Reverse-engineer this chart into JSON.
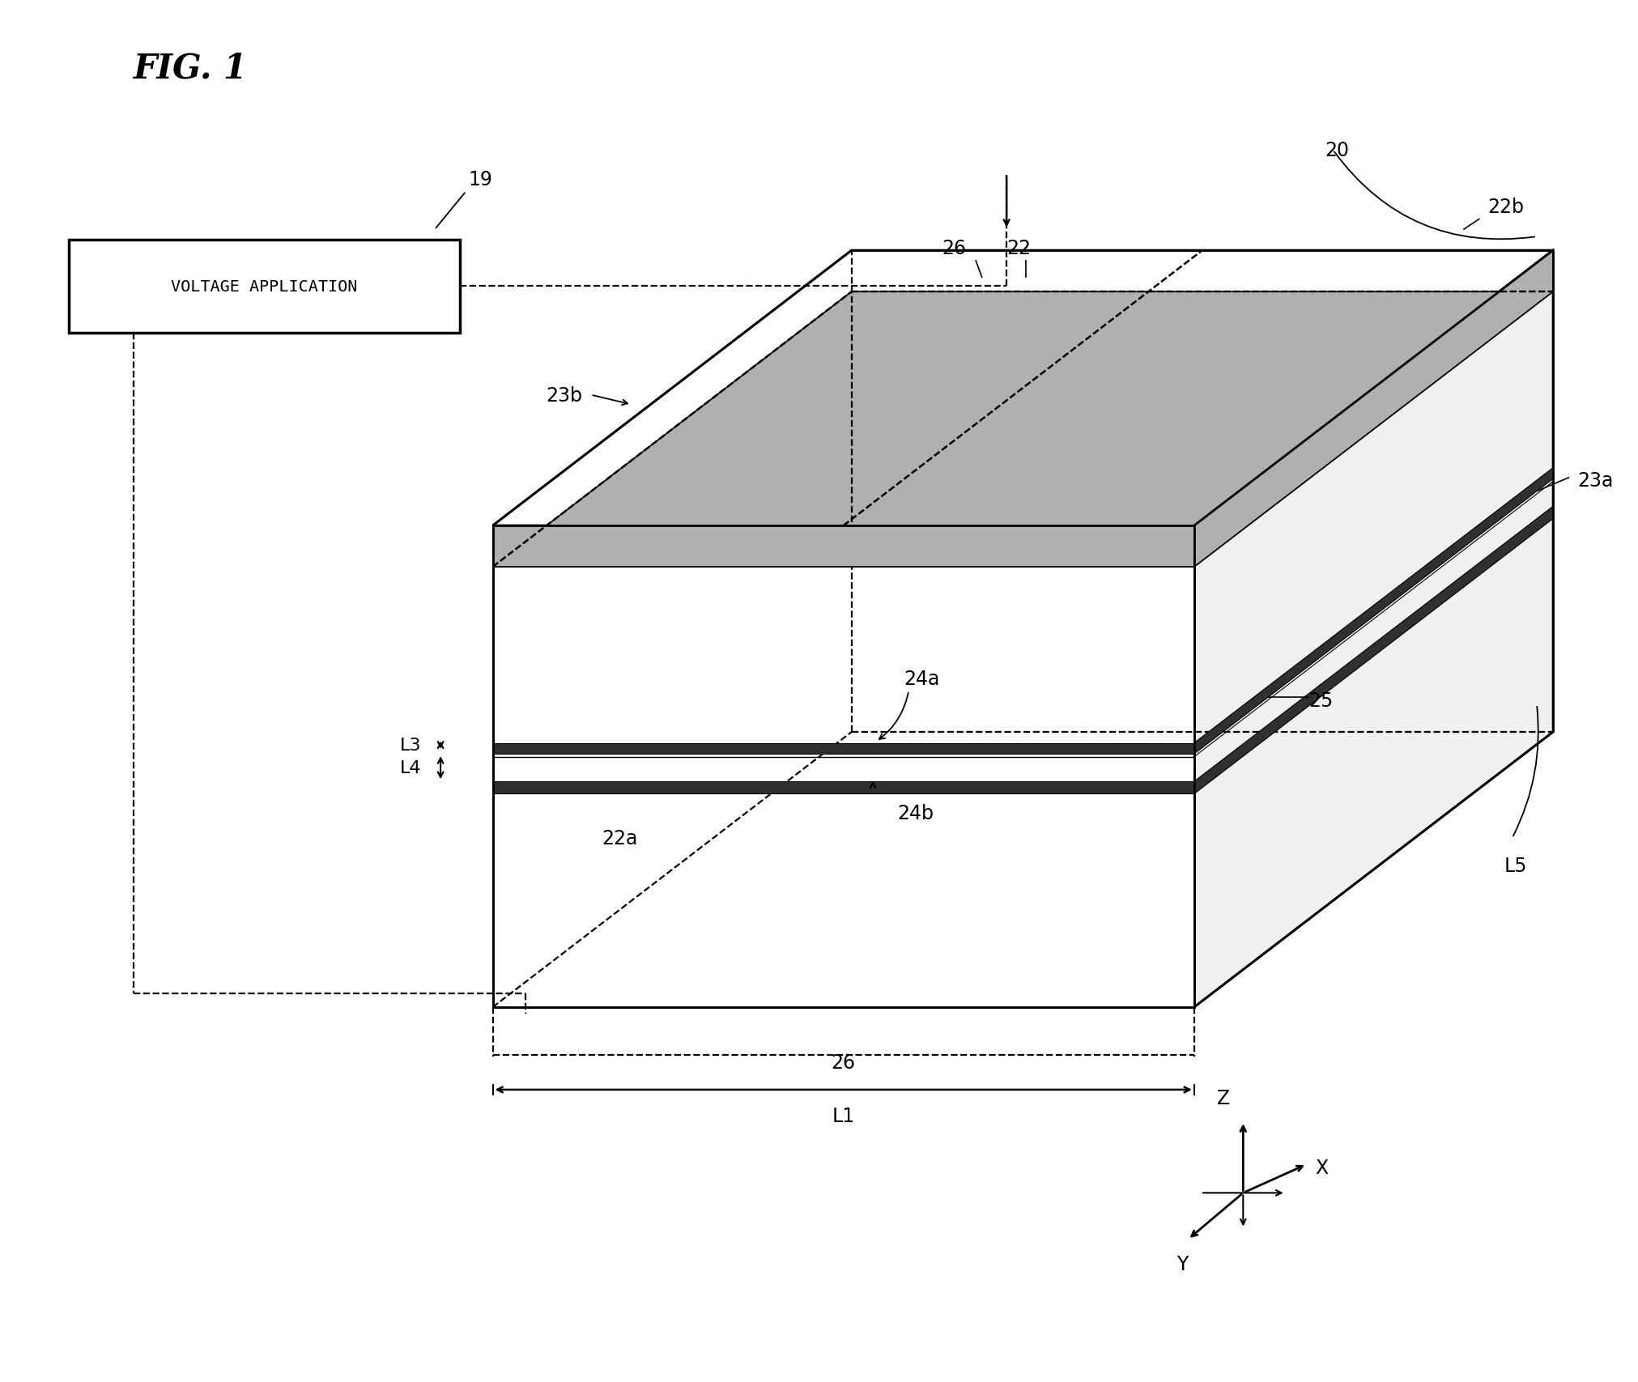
{
  "title": "FIG. 1",
  "background_color": "#ffffff",
  "fig_width": 20.23,
  "fig_height": 17.08,
  "box_label": "VOLTAGE APPLICATION",
  "label_19": "19",
  "label_20": "20",
  "label_22": "22",
  "label_22a": "22a",
  "label_22b": "22b",
  "label_23a": "23a",
  "label_23b": "23b",
  "label_24a": "24a",
  "label_24b": "24b",
  "label_25": "25",
  "label_26": "26",
  "label_L1": "L1",
  "label_L3": "L3",
  "label_L4": "L4",
  "label_L5": "L5",
  "label_X": "X",
  "label_Y": "Y",
  "label_Z": "Z",
  "lw_main": 2.0,
  "lw_dashed": 1.6,
  "fs_title": 30,
  "fs_label": 17
}
